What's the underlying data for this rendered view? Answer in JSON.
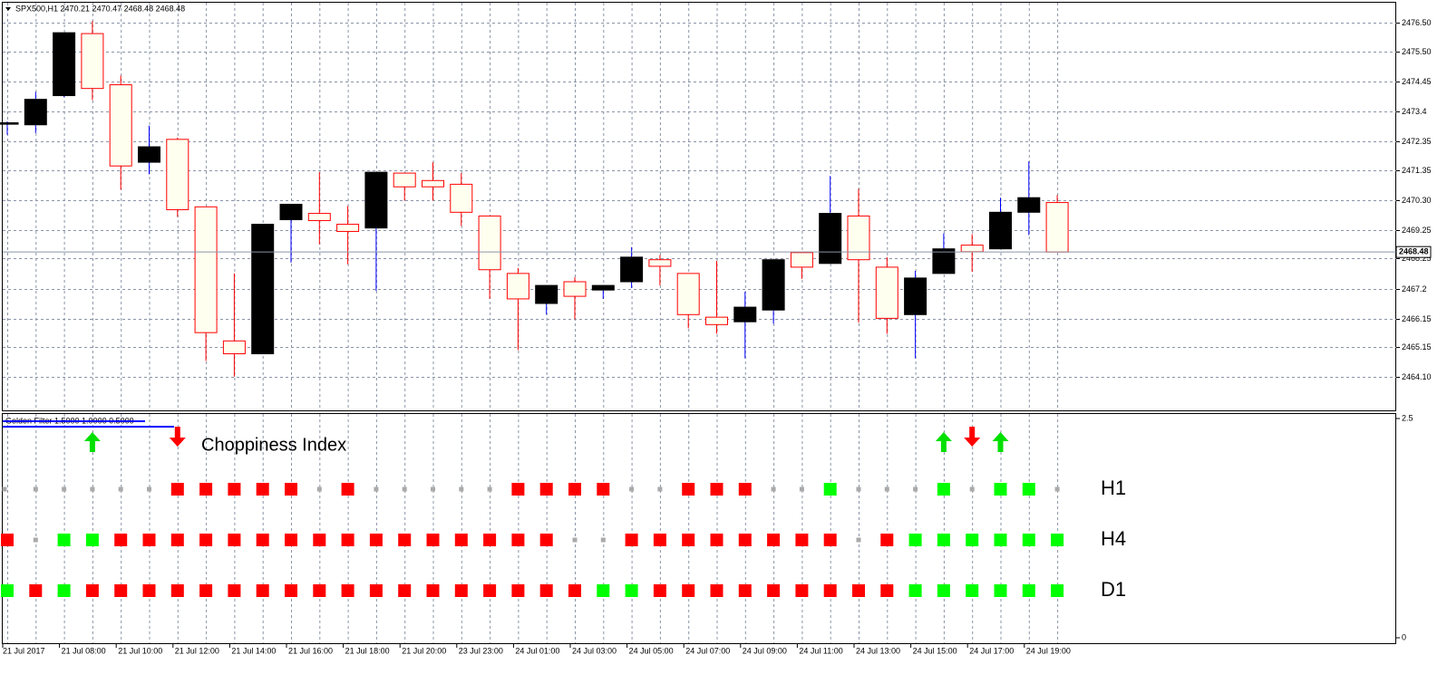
{
  "chart_data": [
    {
      "type": "candlestick",
      "title": "SPX500,H1  2470.21 2470.47 2468.48 2468.48",
      "categories": [
        "21 Jul 2017",
        null,
        "21 Jul 08:00",
        null,
        "21 Jul 10:00",
        null,
        "21 Jul 12:00",
        null,
        "21 Jul 14:00",
        null,
        "21 Jul 16:00",
        null,
        "21 Jul 18:00",
        null,
        "21 Jul 20:00",
        null,
        "23 Jul 23:00",
        null,
        "24 Jul 01:00",
        null,
        "24 Jul 03:00",
        null,
        "24 Jul 05:00",
        null,
        "24 Jul 07:00",
        null,
        "24 Jul 09:00",
        null,
        "24 Jul 11:00",
        null,
        "24 Jul 13:00",
        null,
        "24 Jul 15:00",
        null,
        "24 Jul 17:00",
        null,
        "24 Jul 19:00",
        null
      ],
      "open": [
        2472.95,
        2472.93,
        2473.95,
        2476.12,
        2474.33,
        2471.62,
        2472.42,
        2470.06,
        2465.37,
        2464.92,
        2469.61,
        2469.83,
        2469.45,
        2469.32,
        2471.24,
        2470.98,
        2470.85,
        2469.74,
        2467.73,
        2466.68,
        2467.44,
        2467.15,
        2467.44,
        2468.21,
        2467.73,
        2466.2,
        2466.04,
        2466.45,
        2468.46,
        2468.08,
        2469.74,
        2467.95,
        2466.29,
        2467.73,
        2468.72,
        2468.59,
        2469.87,
        2470.21
      ],
      "high": [
        2473.05,
        2474.08,
        2476.15,
        2476.56,
        2474.65,
        2472.9,
        2472.48,
        2470.06,
        2467.73,
        2469.45,
        2470.15,
        2471.27,
        2470.09,
        2471.27,
        2471.24,
        2471.62,
        2471.24,
        2469.74,
        2467.92,
        2467.31,
        2467.6,
        2467.31,
        2468.65,
        2468.37,
        2467.73,
        2468.17,
        2467.09,
        2468.21,
        2468.46,
        2471.14,
        2470.69,
        2468.3,
        2467.82,
        2469.13,
        2469.1,
        2470.38,
        2471.65,
        2470.47
      ],
      "low": [
        2472.58,
        2472.64,
        2473.9,
        2473.79,
        2470.66,
        2471.2,
        2469.71,
        2464.67,
        2464.12,
        2464.92,
        2468.11,
        2468.75,
        2468.05,
        2467.12,
        2470.28,
        2470.28,
        2469.39,
        2466.84,
        2465.05,
        2466.29,
        2466.13,
        2466.84,
        2467.22,
        2467.31,
        2465.81,
        2465.62,
        2464.76,
        2465.97,
        2467.54,
        2468.08,
        2466.01,
        2465.62,
        2464.76,
        2467.73,
        2467.79,
        2468.59,
        2469.07,
        2468.48
      ],
      "close": [
        2473.0,
        2473.82,
        2476.15,
        2474.2,
        2471.49,
        2472.16,
        2469.96,
        2465.66,
        2464.92,
        2469.45,
        2470.15,
        2469.58,
        2469.2,
        2471.27,
        2470.76,
        2470.76,
        2469.87,
        2467.86,
        2466.84,
        2467.31,
        2466.93,
        2467.31,
        2468.3,
        2467.98,
        2466.29,
        2465.94,
        2466.55,
        2468.21,
        2467.95,
        2469.83,
        2468.21,
        2466.16,
        2467.57,
        2468.59,
        2468.49,
        2469.87,
        2470.38,
        2468.48
      ],
      "up_color": "#000000",
      "down_color": "#fffff0",
      "up_wick": "#0000ff",
      "down_wick": "#ff0000",
      "ylim": [
        2462.94,
        2477.2
      ],
      "yticks": [
        {
          "value": 2464.1,
          "label": "2464.10"
        },
        2465.15,
        2466.15,
        2467.2,
        2468.25,
        2469.25,
        {
          "value": 2470.3,
          "label": "2470.30"
        },
        2471.35,
        2472.35,
        2473.4,
        2474.45,
        {
          "value": 2475.5,
          "label": "2475.50"
        },
        {
          "value": 2476.5,
          "label": "2476.50"
        }
      ],
      "last_price": {
        "value": 2468.48,
        "label": "2468.48"
      },
      "grid": true
    },
    {
      "type": "signal-rows",
      "title": "Golden Filter 1.5000 1.0000 0.5000",
      "annotation": "Choppiness Index",
      "ylim": [
        0,
        2.5
      ],
      "yticks": [
        0,
        2.5
      ],
      "arrows": [
        {
          "x": 3,
          "direction": "up",
          "color": "#00e000"
        },
        {
          "x": 6,
          "direction": "down",
          "color": "#ff0000"
        },
        {
          "x": 33,
          "direction": "up",
          "color": "#00e000"
        },
        {
          "x": 34,
          "direction": "down",
          "color": "#ff0000"
        },
        {
          "x": 35,
          "direction": "up",
          "color": "#00e000"
        }
      ],
      "rows": [
        {
          "name": "H1",
          "colors": [
            "#aaa",
            "#aaa",
            "#aaa",
            "#aaa",
            "#aaa",
            "#aaa",
            "#f00",
            "#f00",
            "#f00",
            "#f00",
            "#f00",
            "#aaa",
            "#f00",
            "#aaa",
            "#aaa",
            "#aaa",
            "#aaa",
            "#aaa",
            "#f00",
            "#f00",
            "#f00",
            "#f00",
            "#aaa",
            "#aaa",
            "#f00",
            "#f00",
            "#f00",
            "#aaa",
            "#aaa",
            "#0f0",
            "#aaa",
            "#aaa",
            "#aaa",
            "#0f0",
            "#aaa",
            "#0f0",
            "#0f0",
            "#aaa"
          ]
        },
        {
          "name": "H4",
          "colors": [
            "#f00",
            "#aaa",
            "#0f0",
            "#0f0",
            "#f00",
            "#f00",
            "#f00",
            "#f00",
            "#f00",
            "#f00",
            "#f00",
            "#f00",
            "#f00",
            "#f00",
            "#f00",
            "#f00",
            "#f00",
            "#f00",
            "#f00",
            "#f00",
            "#aaa",
            "#aaa",
            "#f00",
            "#f00",
            "#f00",
            "#f00",
            "#f00",
            "#f00",
            "#f00",
            "#f00",
            "#aaa",
            "#f00",
            "#0f0",
            "#0f0",
            "#0f0",
            "#0f0",
            "#0f0",
            "#0f0"
          ]
        },
        {
          "name": "D1",
          "colors": [
            "#0f0",
            "#f00",
            "#0f0",
            "#f00",
            "#f00",
            "#f00",
            "#f00",
            "#f00",
            "#f00",
            "#f00",
            "#f00",
            "#f00",
            "#f00",
            "#f00",
            "#f00",
            "#f00",
            "#f00",
            "#f00",
            "#f00",
            "#f00",
            "#f00",
            "#0f0",
            "#0f0",
            "#f00",
            "#f00",
            "#f00",
            "#f00",
            "#f00",
            "#f00",
            "#f00",
            "#f00",
            "#f00",
            "#0f0",
            "#0f0",
            "#0f0",
            "#0f0",
            "#0f0",
            "#0f0"
          ]
        }
      ]
    }
  ]
}
